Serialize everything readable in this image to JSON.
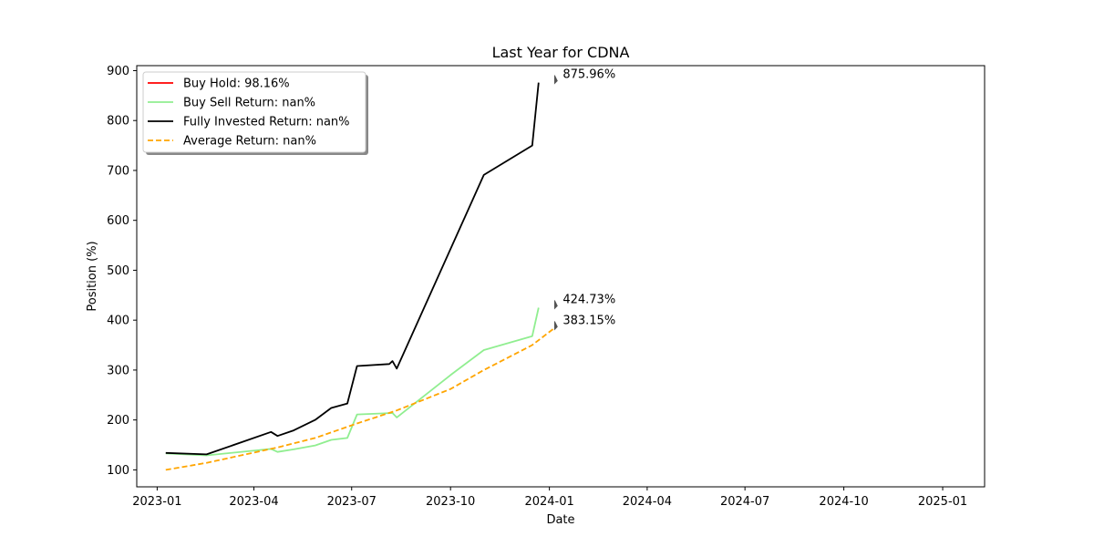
{
  "chart_data": {
    "type": "line",
    "title": "Last Year for CDNA",
    "xlabel": "Date",
    "ylabel": "Position (%)",
    "xlim": [
      "2022-12-13",
      "2025-02-09"
    ],
    "ylim": [
      66,
      910
    ],
    "x_ticks": [
      "2023-01",
      "2023-04",
      "2023-07",
      "2023-10",
      "2024-01",
      "2024-04",
      "2024-07",
      "2024-10",
      "2025-01"
    ],
    "y_ticks": [
      100,
      200,
      300,
      400,
      500,
      600,
      700,
      800,
      900
    ],
    "grid": false,
    "legend_position": "top-left",
    "series": [
      {
        "name": "Buy Hold: 98.16%",
        "color": "#ff0000",
        "style": "solid",
        "points": []
      },
      {
        "name": "Buy Sell Return: nan%",
        "color": "#90ee90",
        "style": "solid",
        "points": [
          [
            "2023-01-09",
            133
          ],
          [
            "2023-02-16",
            129
          ],
          [
            "2023-04-17",
            142
          ],
          [
            "2023-04-23",
            136
          ],
          [
            "2023-05-08",
            141
          ],
          [
            "2023-05-28",
            149
          ],
          [
            "2023-06-12",
            160
          ],
          [
            "2023-06-27",
            164
          ],
          [
            "2023-07-06",
            211
          ],
          [
            "2023-08-08",
            214
          ],
          [
            "2023-08-12",
            205
          ],
          [
            "2023-10-01",
            290
          ],
          [
            "2023-11-01",
            340
          ],
          [
            "2023-12-16",
            368
          ],
          [
            "2023-12-22",
            425
          ]
        ]
      },
      {
        "name": "Fully Invested Return: nan%",
        "color": "#000000",
        "style": "solid",
        "points": [
          [
            "2023-01-09",
            134
          ],
          [
            "2023-02-16",
            131
          ],
          [
            "2023-04-17",
            176
          ],
          [
            "2023-04-23",
            168
          ],
          [
            "2023-05-08",
            179
          ],
          [
            "2023-05-28",
            200
          ],
          [
            "2023-06-12",
            224
          ],
          [
            "2023-06-27",
            233
          ],
          [
            "2023-07-06",
            308
          ],
          [
            "2023-08-05",
            312
          ],
          [
            "2023-08-08",
            318
          ],
          [
            "2023-08-12",
            303
          ],
          [
            "2023-11-01",
            691
          ],
          [
            "2023-12-16",
            750
          ],
          [
            "2023-12-22",
            876
          ]
        ]
      },
      {
        "name": "Average Return: nan%",
        "color": "#ffa500",
        "style": "dashed",
        "points": [
          [
            "2023-01-09",
            100
          ],
          [
            "2023-02-16",
            114
          ],
          [
            "2023-04-23",
            145
          ],
          [
            "2023-05-28",
            164
          ],
          [
            "2023-07-06",
            193
          ],
          [
            "2023-08-12",
            219
          ],
          [
            "2023-10-01",
            262
          ],
          [
            "2023-11-01",
            300
          ],
          [
            "2023-12-16",
            350
          ],
          [
            "2024-01-05",
            383
          ]
        ]
      }
    ],
    "annotations": [
      {
        "text": "875.96%",
        "x": "2024-01-05",
        "y": 876
      },
      {
        "text": "424.73%",
        "x": "2024-01-05",
        "y": 425
      },
      {
        "text": "383.15%",
        "x": "2024-01-05",
        "y": 383
      }
    ]
  }
}
